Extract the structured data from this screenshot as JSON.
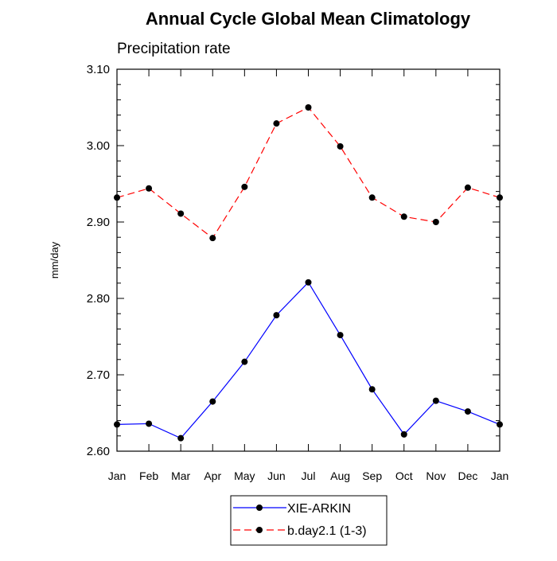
{
  "chart_data": {
    "type": "line",
    "title": "Annual Cycle Global Mean Climatology",
    "subtitle": "Precipitation rate",
    "xlabel": "",
    "ylabel": "mm/day",
    "categories": [
      "Jan",
      "Feb",
      "Mar",
      "Apr",
      "May",
      "Jun",
      "Jul",
      "Aug",
      "Sep",
      "Oct",
      "Nov",
      "Dec",
      "Jan"
    ],
    "ylim": [
      2.6,
      3.1
    ],
    "yticks": [
      "2.60",
      "2.70",
      "2.80",
      "2.90",
      "3.00",
      "3.10"
    ],
    "grid": false,
    "legend_position": "bottom",
    "series": [
      {
        "name": "XIE-ARKIN",
        "color": "#0000ff",
        "line_style": "solid",
        "marker": "filled-circle",
        "values": [
          2.635,
          2.636,
          2.617,
          2.665,
          2.717,
          2.778,
          2.821,
          2.752,
          2.681,
          2.622,
          2.666,
          2.652,
          2.635
        ]
      },
      {
        "name": "b.day2.1 (1-3)",
        "color": "#ff0000",
        "line_style": "dashed",
        "marker": "filled-circle",
        "values": [
          2.932,
          2.944,
          2.911,
          2.879,
          2.946,
          3.029,
          3.05,
          2.999,
          2.932,
          2.907,
          2.9,
          2.945,
          2.932
        ]
      }
    ]
  }
}
